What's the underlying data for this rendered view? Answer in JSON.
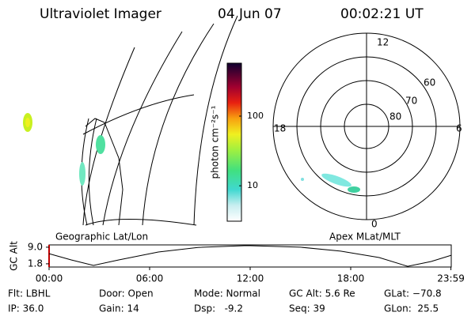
{
  "header": {
    "title": "Ultraviolet Imager",
    "date": "04 Jun 07",
    "time": "00:02:21 UT"
  },
  "colorbar": {
    "label": "photon cm⁻²s⁻¹",
    "lim": [
      3.1,
      575
    ],
    "log": true,
    "ticks": [
      10,
      100
    ]
  },
  "map": {
    "label": "Geographic Lat/Lon"
  },
  "polar": {
    "label": "Apex MLat/MLT",
    "hours": [
      "12",
      "18",
      "6",
      "0"
    ],
    "lats": [
      80,
      70,
      60
    ]
  },
  "chart_data": {
    "type": "line",
    "ylabel": "GC Alt",
    "x": [
      0,
      1.32,
      2.65,
      4.16,
      6.52,
      8.88,
      11.8,
      15.0,
      17.4,
      19.7,
      21.4,
      22.8,
      24.0
    ],
    "series": [
      {
        "color": "#000000",
        "values": [
          6.2,
          3.5,
          1.1,
          3.5,
          6.9,
          8.9,
          9.7,
          9.0,
          7.3,
          4.5,
          0.7,
          2.8,
          5.5
        ]
      }
    ],
    "xlim": [
      0,
      24
    ],
    "ylim": [
      0.4,
      10
    ],
    "xticks": [
      {
        "value": 0,
        "label": "00:00"
      },
      {
        "value": 6,
        "label": "06:00"
      },
      {
        "value": 12,
        "label": "12:00"
      },
      {
        "value": 18,
        "label": "18:00"
      },
      {
        "value": 23.98,
        "label": "23:59"
      }
    ],
    "yticks": [
      {
        "value": 9,
        "label": "9.0"
      },
      {
        "value": 1.8,
        "label": "1.8"
      }
    ]
  },
  "info": {
    "rows": [
      [
        "Flt: LBHL",
        "Door: Open",
        "Mode: Normal",
        "GC Alt: 5.6 Re",
        "GLat: −70.8"
      ],
      [
        "IP: 36.0",
        "Gain: 14",
        "Dsp:   -9.2",
        "Seq: 39",
        "GLon:  25.5"
      ]
    ]
  }
}
